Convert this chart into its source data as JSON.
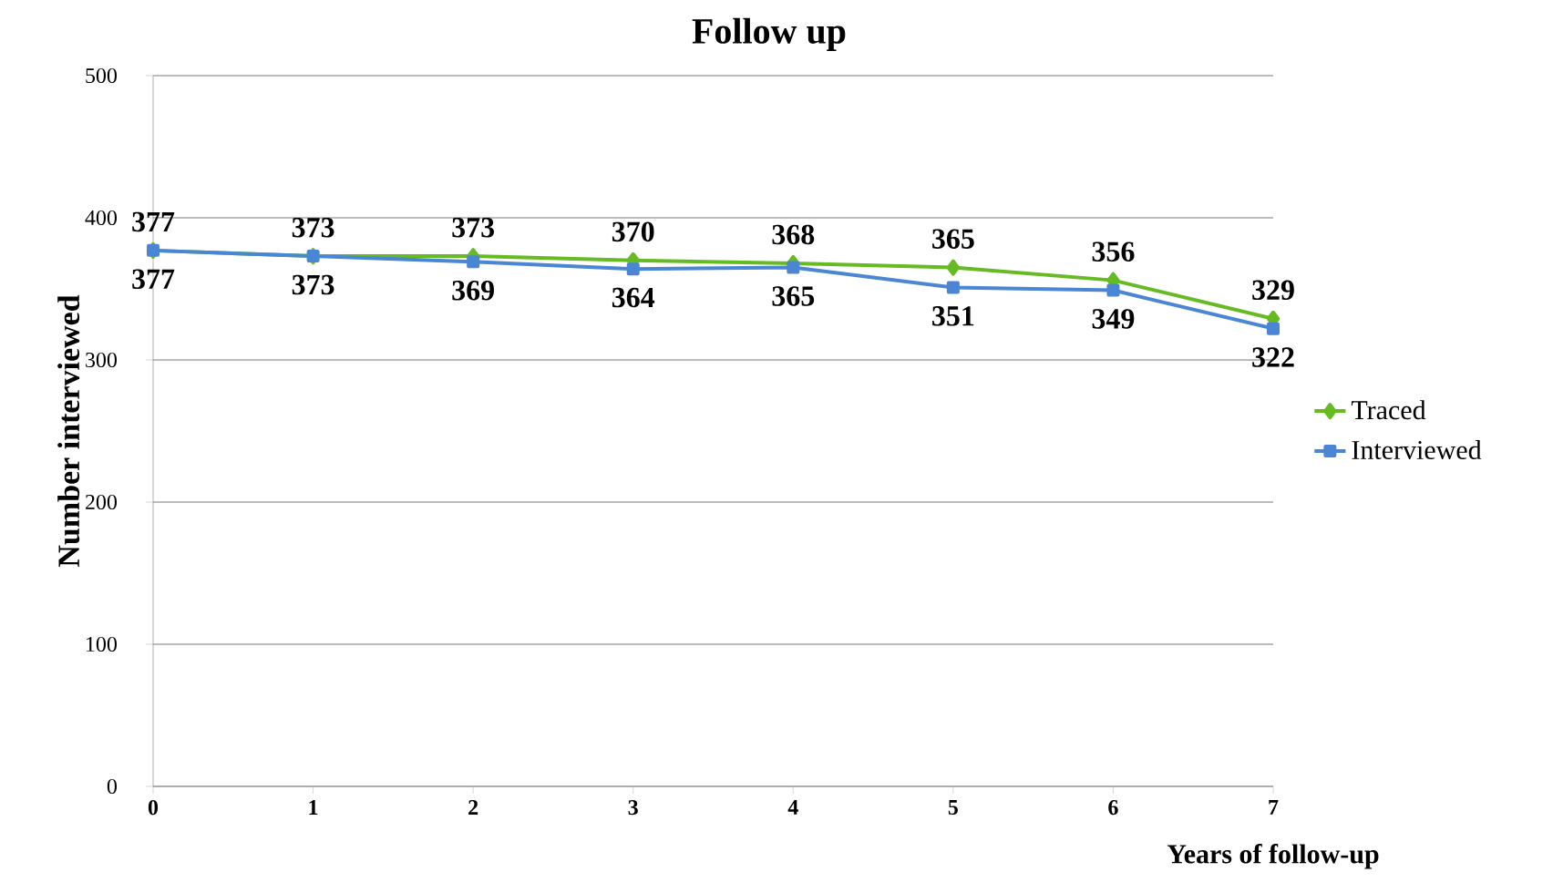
{
  "chart_data": {
    "type": "line",
    "title": "Follow up",
    "xlabel": "Years of follow-up",
    "ylabel": "Number interviewed",
    "x": [
      0,
      1,
      2,
      3,
      4,
      5,
      6,
      7
    ],
    "xlim": [
      0,
      7
    ],
    "xticks": [
      0,
      1,
      2,
      3,
      4,
      5,
      6,
      7
    ],
    "ylim": [
      0,
      500
    ],
    "yticks": [
      0,
      100,
      200,
      300,
      400,
      500
    ],
    "series": [
      {
        "name": "Traced",
        "color": "#66bb22",
        "marker": "diamond",
        "values": [
          377,
          373,
          373,
          370,
          368,
          365,
          356,
          329
        ]
      },
      {
        "name": "Interviewed",
        "color": "#4a86d4",
        "marker": "square",
        "values": [
          377,
          373,
          369,
          364,
          365,
          351,
          349,
          322
        ]
      }
    ],
    "data_labels": true,
    "grid": "y",
    "legend": "right",
    "line_style": "solid"
  }
}
